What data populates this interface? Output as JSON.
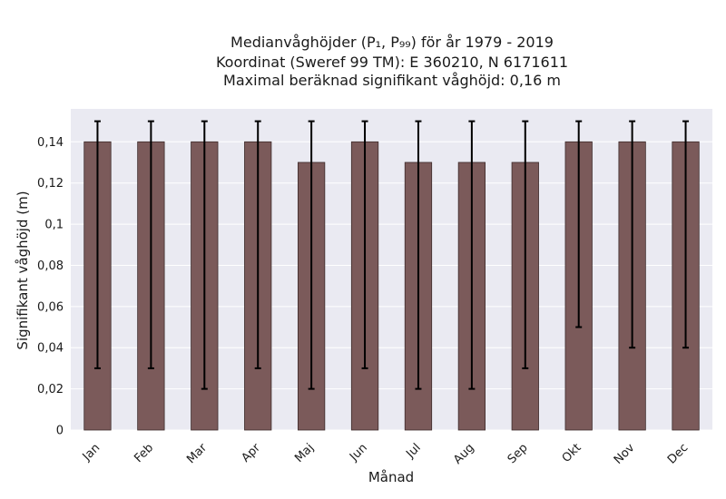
{
  "chart_data": {
    "type": "bar",
    "title_lines": [
      "Medianvåghöjder (P₁, P₉₉) för år 1979 - 2019",
      "Koordinat (Sweref 99 TM): E 360210, N 6171611",
      "Maximal beräknad signifikant våghöjd: 0,16 m"
    ],
    "xlabel": "Månad",
    "ylabel": "Signifikant våghöjd (m)",
    "categories": [
      "Jan",
      "Feb",
      "Mar",
      "Apr",
      "Maj",
      "Jun",
      "Jul",
      "Aug",
      "Sep",
      "Okt",
      "Nov",
      "Dec"
    ],
    "values": [
      0.14,
      0.14,
      0.14,
      0.14,
      0.13,
      0.14,
      0.13,
      0.13,
      0.13,
      0.14,
      0.14,
      0.14
    ],
    "error_low": [
      0.03,
      0.03,
      0.02,
      0.03,
      0.02,
      0.03,
      0.02,
      0.02,
      0.03,
      0.05,
      0.04,
      0.04
    ],
    "error_high": [
      0.15,
      0.15,
      0.15,
      0.15,
      0.15,
      0.15,
      0.15,
      0.15,
      0.15,
      0.15,
      0.15,
      0.15
    ],
    "ylim": [
      0,
      0.156
    ],
    "yticks": [
      0,
      0.02,
      0.04,
      0.06,
      0.08,
      0.1,
      0.12,
      0.14
    ],
    "ytick_labels": [
      "0",
      "0,02",
      "0,04",
      "0,06",
      "0,08",
      "0,1",
      "0,12",
      "0,14"
    ],
    "grid": true,
    "colors": {
      "bar": "#7b5a5a",
      "bar_edge": "#3d2b2b",
      "errorbar": "#000000",
      "plot_background": "#eaeaf2",
      "grid": "#ffffff"
    }
  }
}
